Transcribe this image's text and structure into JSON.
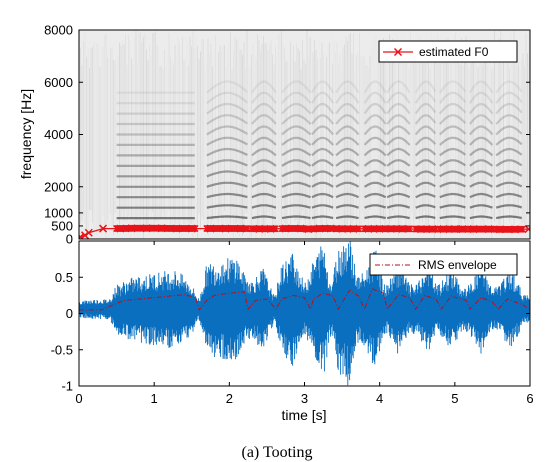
{
  "caption": "(a) Tooting",
  "colors": {
    "f0": "#e8141a",
    "waveform": "#0a6fbf",
    "rms": "#b5101e",
    "spectrogram_bg": "#ececec",
    "harmonic": "#3a3a3a"
  },
  "chart_data": [
    {
      "type": "heatmap",
      "title": "",
      "xlabel": "",
      "ylabel": "frequency [Hz]",
      "xlim": [
        0,
        6
      ],
      "ylim": [
        0,
        8000
      ],
      "y_ticks": [
        0,
        500,
        1000,
        2000,
        4000,
        6000,
        8000
      ],
      "y_tick_labels": [
        "0",
        "500",
        "1000",
        "2000",
        "4000",
        "6000",
        "8000"
      ],
      "grid": false,
      "legend_position": "top-right",
      "voiced_segments": [
        [
          0.5,
          1.55
        ],
        [
          1.7,
          2.25
        ],
        [
          2.3,
          2.62
        ],
        [
          2.7,
          3.08
        ],
        [
          3.1,
          3.38
        ],
        [
          3.42,
          3.72
        ],
        [
          3.8,
          4.08
        ],
        [
          4.1,
          4.4
        ],
        [
          4.48,
          4.75
        ],
        [
          4.8,
          5.15
        ],
        [
          5.2,
          5.5
        ],
        [
          5.55,
          5.9
        ]
      ],
      "series": [
        {
          "name": "estimated F0",
          "x": [
            0.02,
            0.08,
            0.13,
            0.32,
            0.55,
            0.7,
            0.9,
            1.1,
            1.3,
            1.5,
            1.75,
            1.95,
            2.15,
            2.4,
            2.55,
            2.75,
            2.95,
            3.05,
            3.2,
            3.35,
            3.5,
            3.65,
            3.85,
            4.0,
            4.15,
            4.3,
            4.55,
            4.7,
            4.85,
            5.0,
            5.1,
            5.25,
            5.45,
            5.6,
            5.8,
            5.98
          ],
          "y": [
            80,
            140,
            240,
            400,
            400,
            410,
            410,
            410,
            400,
            400,
            400,
            400,
            400,
            390,
            390,
            400,
            400,
            380,
            400,
            400,
            390,
            390,
            390,
            390,
            390,
            390,
            380,
            380,
            380,
            380,
            380,
            380,
            380,
            370,
            370,
            380
          ]
        }
      ]
    },
    {
      "type": "line",
      "title": "",
      "xlabel": "time [s]",
      "ylabel": "",
      "xlim": [
        0,
        6
      ],
      "ylim": [
        -1,
        1
      ],
      "x_ticks": [
        0,
        1,
        2,
        3,
        4,
        5,
        6
      ],
      "x_tick_labels": [
        "0",
        "1",
        "2",
        "3",
        "4",
        "5",
        "6"
      ],
      "y_ticks": [
        -1,
        -0.5,
        0,
        0.5
      ],
      "y_tick_labels": [
        "-1",
        "-0.5",
        "0",
        "0.5"
      ],
      "grid": false,
      "legend_position": "top-right",
      "series": [
        {
          "name": "RMS envelope",
          "x": [
            0.0,
            0.3,
            0.5,
            0.6,
            0.8,
            1.0,
            1.2,
            1.4,
            1.55,
            1.6,
            1.7,
            1.8,
            2.0,
            2.2,
            2.25,
            2.35,
            2.5,
            2.62,
            2.7,
            2.85,
            3.0,
            3.08,
            3.12,
            3.25,
            3.38,
            3.45,
            3.6,
            3.72,
            3.8,
            3.9,
            4.05,
            4.1,
            4.25,
            4.4,
            4.48,
            4.6,
            4.75,
            4.82,
            4.95,
            5.15,
            5.2,
            5.35,
            5.5,
            5.58,
            5.7,
            5.9,
            6.0
          ],
          "y": [
            0.05,
            0.05,
            0.14,
            0.18,
            0.2,
            0.22,
            0.24,
            0.26,
            0.22,
            0.05,
            0.18,
            0.25,
            0.28,
            0.3,
            0.06,
            0.18,
            0.2,
            0.06,
            0.2,
            0.25,
            0.22,
            0.06,
            0.2,
            0.28,
            0.24,
            0.06,
            0.32,
            0.24,
            0.06,
            0.34,
            0.28,
            0.06,
            0.26,
            0.22,
            0.06,
            0.25,
            0.2,
            0.06,
            0.24,
            0.18,
            0.06,
            0.22,
            0.16,
            0.06,
            0.2,
            0.12,
            0.06
          ]
        }
      ],
      "waveform_peak_envelope": {
        "x": [
          0.0,
          0.2,
          0.4,
          0.5,
          0.7,
          0.9,
          1.1,
          1.3,
          1.5,
          1.6,
          1.7,
          1.9,
          2.1,
          2.2,
          2.3,
          2.45,
          2.6,
          2.7,
          2.85,
          3.0,
          3.1,
          3.25,
          3.35,
          3.45,
          3.6,
          3.7,
          3.8,
          3.95,
          4.05,
          4.1,
          4.25,
          4.4,
          4.5,
          4.65,
          4.75,
          4.8,
          4.95,
          5.1,
          5.2,
          5.35,
          5.5,
          5.6,
          5.75,
          5.9,
          6.0
        ],
        "y": [
          0.1,
          0.12,
          0.12,
          0.3,
          0.38,
          0.42,
          0.46,
          0.48,
          0.3,
          0.12,
          0.55,
          0.6,
          0.65,
          0.42,
          0.35,
          0.5,
          0.15,
          0.55,
          0.7,
          0.3,
          0.55,
          0.85,
          0.3,
          0.75,
          0.95,
          0.4,
          0.45,
          0.75,
          0.3,
          0.3,
          0.55,
          0.3,
          0.3,
          0.55,
          0.3,
          0.3,
          0.5,
          0.25,
          0.3,
          0.55,
          0.25,
          0.3,
          0.5,
          0.2,
          0.15
        ]
      }
    }
  ]
}
